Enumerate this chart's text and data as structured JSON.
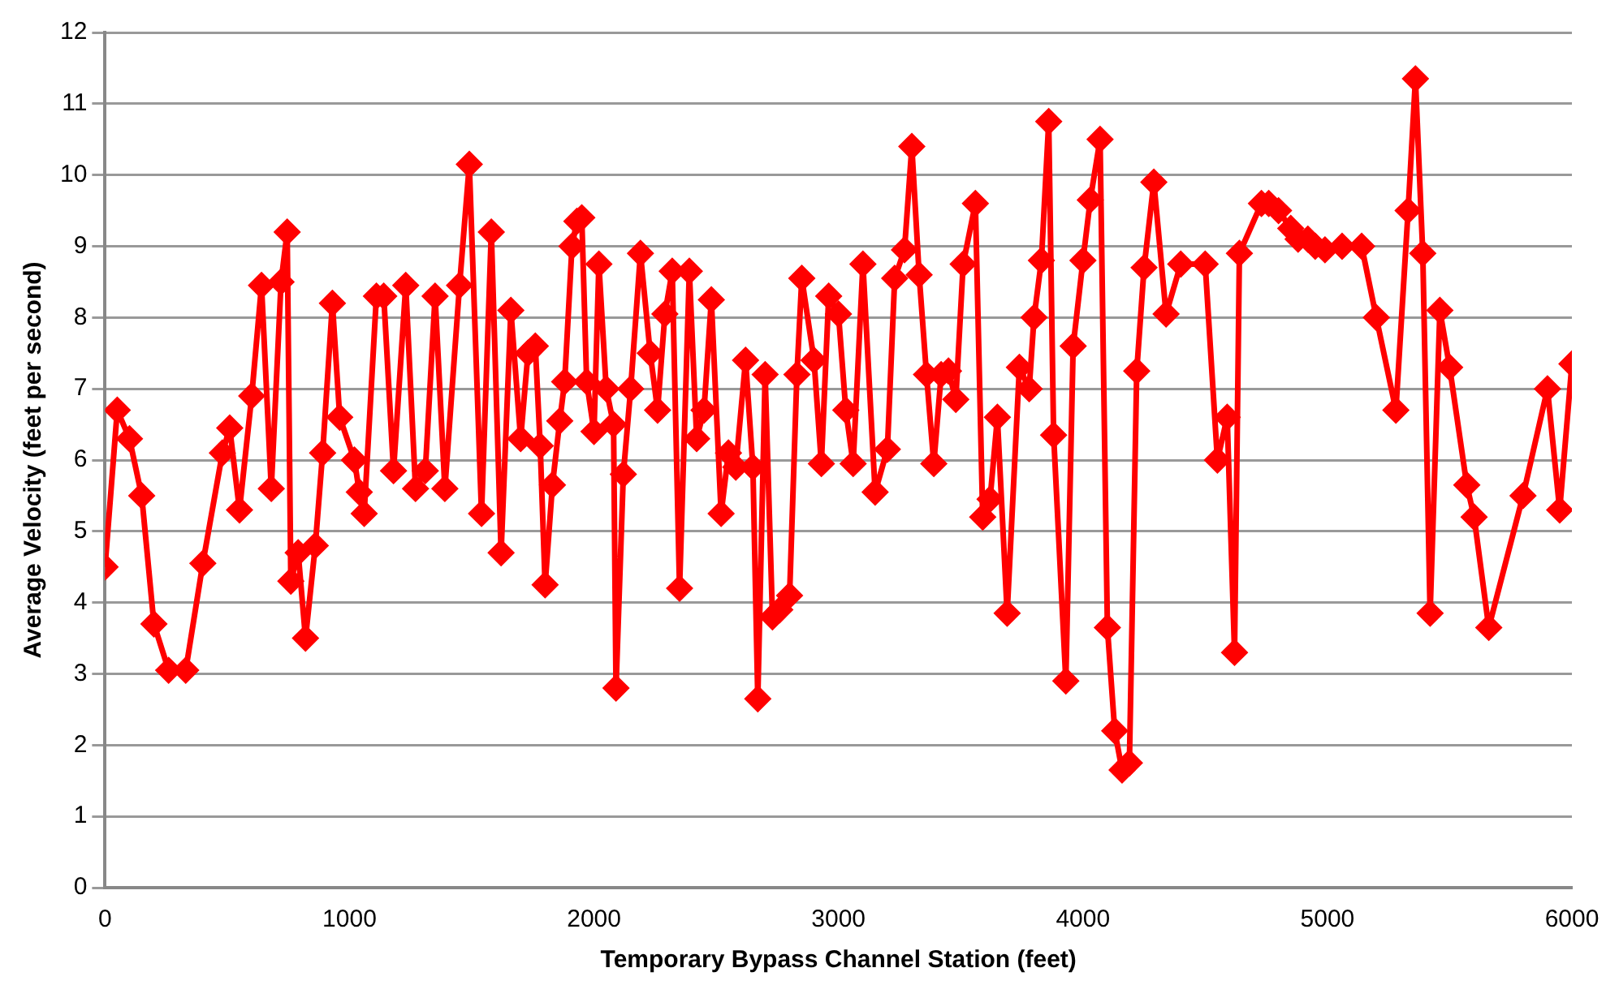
{
  "chart_data": {
    "type": "line",
    "xlabel": "Temporary Bypass Channel Station (feet)",
    "ylabel": "Average Velocity (feet per second)",
    "x": [
      0,
      50,
      100,
      150,
      200,
      260,
      330,
      400,
      480,
      510,
      550,
      600,
      640,
      680,
      720,
      745,
      760,
      790,
      820,
      860,
      890,
      930,
      960,
      1020,
      1040,
      1060,
      1110,
      1140,
      1180,
      1230,
      1270,
      1310,
      1350,
      1390,
      1450,
      1490,
      1540,
      1580,
      1620,
      1660,
      1700,
      1730,
      1760,
      1780,
      1800,
      1830,
      1860,
      1880,
      1910,
      1930,
      1950,
      1970,
      2000,
      2020,
      2050,
      2080,
      2090,
      2120,
      2150,
      2190,
      2230,
      2260,
      2290,
      2320,
      2350,
      2390,
      2420,
      2450,
      2480,
      2520,
      2550,
      2580,
      2620,
      2650,
      2670,
      2700,
      2730,
      2760,
      2800,
      2830,
      2850,
      2900,
      2930,
      2960,
      3000,
      3030,
      3060,
      3100,
      3150,
      3200,
      3230,
      3270,
      3300,
      3330,
      3360,
      3390,
      3420,
      3450,
      3480,
      3510,
      3560,
      3590,
      3620,
      3650,
      3690,
      3740,
      3780,
      3800,
      3830,
      3860,
      3880,
      3930,
      3960,
      4000,
      4030,
      4070,
      4100,
      4130,
      4160,
      4190,
      4220,
      4250,
      4290,
      4340,
      4400,
      4500,
      4550,
      4590,
      4620,
      4640,
      4730,
      4760,
      4800,
      4850,
      4880,
      4920,
      4950,
      4990,
      5060,
      5140,
      5200,
      5280,
      5330,
      5360,
      5390,
      5420,
      5460,
      5500,
      5570,
      5600,
      5660,
      5800,
      5900,
      5950,
      6000
    ],
    "values": [
      4.5,
      6.7,
      6.3,
      5.5,
      3.7,
      3.05,
      3.05,
      4.55,
      6.1,
      6.45,
      5.3,
      6.9,
      8.45,
      5.6,
      8.5,
      9.2,
      4.3,
      4.7,
      3.5,
      4.8,
      6.1,
      8.2,
      6.6,
      6.0,
      5.55,
      5.25,
      8.3,
      8.3,
      5.85,
      8.45,
      5.6,
      5.85,
      8.3,
      5.6,
      8.45,
      10.15,
      5.25,
      9.2,
      4.7,
      8.1,
      6.3,
      7.5,
      7.6,
      6.2,
      4.25,
      5.65,
      6.55,
      7.1,
      9.0,
      9.35,
      9.4,
      7.1,
      6.4,
      8.75,
      7.0,
      6.5,
      2.8,
      5.8,
      7.0,
      8.9,
      7.5,
      6.7,
      8.05,
      8.65,
      4.2,
      8.65,
      6.3,
      6.7,
      8.25,
      5.25,
      6.1,
      5.9,
      7.4,
      5.9,
      2.65,
      7.2,
      3.8,
      3.9,
      4.1,
      7.2,
      8.55,
      7.4,
      5.95,
      8.3,
      8.05,
      6.7,
      5.95,
      8.75,
      5.55,
      6.15,
      8.55,
      8.95,
      10.4,
      8.6,
      7.2,
      5.95,
      7.2,
      7.25,
      6.85,
      8.75,
      9.6,
      5.2,
      5.45,
      6.6,
      3.85,
      7.3,
      7.0,
      8.0,
      8.8,
      10.75,
      6.35,
      2.9,
      7.6,
      8.8,
      9.65,
      10.5,
      3.65,
      2.2,
      1.65,
      1.75,
      7.25,
      8.7,
      9.9,
      8.05,
      8.75,
      8.75,
      6.0,
      6.6,
      3.3,
      8.9,
      9.6,
      9.6,
      9.5,
      9.25,
      9.1,
      9.1,
      9.0,
      8.95,
      9.0,
      9.0,
      8.0,
      6.7,
      9.5,
      11.35,
      8.9,
      3.85,
      8.1,
      7.3,
      5.65,
      5.2,
      3.65,
      5.5,
      7.0,
      5.3,
      7.35
    ],
    "color": "#ff0000",
    "marker": "diamond",
    "line_style": "solid",
    "grid": "y",
    "legend": false,
    "xlim": [
      0,
      6000
    ],
    "xticks": [
      0,
      1000,
      2000,
      3000,
      4000,
      5000,
      6000
    ],
    "ylim": [
      0,
      12
    ],
    "yticks": [
      0,
      1,
      2,
      3,
      4,
      5,
      6,
      7,
      8,
      9,
      10,
      11,
      12
    ]
  }
}
